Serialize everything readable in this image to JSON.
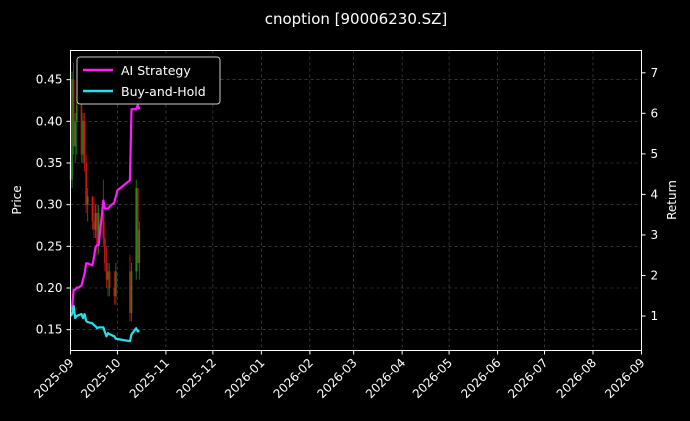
{
  "chart_data": {
    "type": "line",
    "title": "cnoption [90006230.SZ]",
    "ylabel": "Price",
    "y2label": "Return",
    "xlim": [
      "2025-09-01",
      "2026-09-01"
    ],
    "ylim": [
      0.125,
      0.485
    ],
    "y2lim": [
      0.15,
      7.55
    ],
    "grid": true,
    "legend_placement": "upper-left",
    "x_ticks": [
      "2025-09",
      "2025-10",
      "2025-11",
      "2025-12",
      "2026-01",
      "2026-02",
      "2026-03",
      "2026-04",
      "2026-05",
      "2026-06",
      "2026-07",
      "2026-08",
      "2026-09"
    ],
    "y_ticks": [
      "0.15",
      "0.20",
      "0.25",
      "0.30",
      "0.35",
      "0.40",
      "0.45"
    ],
    "y2_ticks": [
      "1",
      "2",
      "3",
      "4",
      "5",
      "6",
      "7"
    ],
    "colors": {
      "up": "#1e8a1e",
      "down": "#d11515",
      "strategy": "#ff1aff",
      "buyhold": "#22e1f0",
      "grid": "#555555",
      "axis": "#ffffff"
    },
    "series": [
      {
        "name": "AI Strategy",
        "axis": "right",
        "x": [
          "2025-09-01",
          "2025-09-02",
          "2025-09-03",
          "2025-09-04",
          "2025-09-05",
          "2025-09-06",
          "2025-09-08",
          "2025-09-10",
          "2025-09-11",
          "2025-09-12",
          "2025-09-15",
          "2025-09-16",
          "2025-09-17",
          "2025-09-18",
          "2025-09-19",
          "2025-09-22",
          "2025-09-23",
          "2025-09-25",
          "2025-09-26",
          "2025-09-29",
          "2025-09-30",
          "2025-10-01",
          "2025-10-09",
          "2025-10-10",
          "2025-10-13",
          "2025-10-14",
          "2025-10-15"
        ],
        "values": [
          1.15,
          1.2,
          1.65,
          1.65,
          1.7,
          1.7,
          1.75,
          2.05,
          2.3,
          2.3,
          2.25,
          2.45,
          2.7,
          2.75,
          2.75,
          3.85,
          3.65,
          3.65,
          3.7,
          3.8,
          3.95,
          4.1,
          4.35,
          6.1,
          6.1,
          6.2,
          6.1
        ]
      },
      {
        "name": "Buy-and-Hold",
        "axis": "right",
        "x": [
          "2025-09-01",
          "2025-09-02",
          "2025-09-03",
          "2025-09-04",
          "2025-09-05",
          "2025-09-08",
          "2025-09-09",
          "2025-09-10",
          "2025-09-11",
          "2025-09-12",
          "2025-09-15",
          "2025-09-16",
          "2025-09-17",
          "2025-09-18",
          "2025-09-19",
          "2025-09-22",
          "2025-09-23",
          "2025-09-24",
          "2025-09-25",
          "2025-09-26",
          "2025-09-29",
          "2025-09-30",
          "2025-10-09",
          "2025-10-10",
          "2025-10-13",
          "2025-10-14",
          "2025-10-15"
        ],
        "values": [
          1.0,
          1.05,
          1.25,
          0.95,
          1.0,
          1.05,
          0.95,
          1.05,
          0.88,
          0.85,
          0.82,
          0.78,
          0.75,
          0.7,
          0.72,
          0.72,
          0.6,
          0.5,
          0.58,
          0.55,
          0.5,
          0.44,
          0.38,
          0.55,
          0.7,
          0.62,
          0.65
        ]
      }
    ],
    "ohlc": [
      {
        "date": "2025-09-01",
        "o": 0.35,
        "h": 0.4,
        "l": 0.33,
        "c": 0.33
      },
      {
        "date": "2025-09-02",
        "o": 0.33,
        "h": 0.46,
        "l": 0.32,
        "c": 0.45
      },
      {
        "date": "2025-09-03",
        "o": 0.45,
        "h": 0.47,
        "l": 0.36,
        "c": 0.37
      },
      {
        "date": "2025-09-04",
        "o": 0.37,
        "h": 0.41,
        "l": 0.35,
        "c": 0.4
      },
      {
        "date": "2025-09-05",
        "o": 0.4,
        "h": 0.43,
        "l": 0.36,
        "c": 0.42
      },
      {
        "date": "2025-09-08",
        "o": 0.42,
        "h": 0.42,
        "l": 0.35,
        "c": 0.36
      },
      {
        "date": "2025-09-09",
        "o": 0.36,
        "h": 0.41,
        "l": 0.35,
        "c": 0.4
      },
      {
        "date": "2025-09-10",
        "o": 0.4,
        "h": 0.41,
        "l": 0.34,
        "c": 0.35
      },
      {
        "date": "2025-09-11",
        "o": 0.35,
        "h": 0.36,
        "l": 0.29,
        "c": 0.3
      },
      {
        "date": "2025-09-12",
        "o": 0.3,
        "h": 0.32,
        "l": 0.28,
        "c": 0.31
      },
      {
        "date": "2025-09-15",
        "o": 0.31,
        "h": 0.31,
        "l": 0.27,
        "c": 0.28
      },
      {
        "date": "2025-09-16",
        "o": 0.28,
        "h": 0.31,
        "l": 0.26,
        "c": 0.27
      },
      {
        "date": "2025-09-17",
        "o": 0.27,
        "h": 0.3,
        "l": 0.26,
        "c": 0.29
      },
      {
        "date": "2025-09-18",
        "o": 0.29,
        "h": 0.3,
        "l": 0.24,
        "c": 0.25
      },
      {
        "date": "2025-09-19",
        "o": 0.25,
        "h": 0.3,
        "l": 0.24,
        "c": 0.29
      },
      {
        "date": "2025-09-22",
        "o": 0.29,
        "h": 0.33,
        "l": 0.25,
        "c": 0.26
      },
      {
        "date": "2025-09-23",
        "o": 0.26,
        "h": 0.28,
        "l": 0.22,
        "c": 0.23
      },
      {
        "date": "2025-09-24",
        "o": 0.23,
        "h": 0.25,
        "l": 0.2,
        "c": 0.21
      },
      {
        "date": "2025-09-25",
        "o": 0.21,
        "h": 0.23,
        "l": 0.19,
        "c": 0.22
      },
      {
        "date": "2025-09-26",
        "o": 0.22,
        "h": 0.23,
        "l": 0.19,
        "c": 0.2
      },
      {
        "date": "2025-09-29",
        "o": 0.2,
        "h": 0.22,
        "l": 0.18,
        "c": 0.19
      },
      {
        "date": "2025-09-30",
        "o": 0.19,
        "h": 0.23,
        "l": 0.18,
        "c": 0.22
      },
      {
        "date": "2025-10-09",
        "o": 0.22,
        "h": 0.24,
        "l": 0.16,
        "c": 0.17
      },
      {
        "date": "2025-10-10",
        "o": 0.17,
        "h": 0.23,
        "l": 0.16,
        "c": 0.22
      },
      {
        "date": "2025-10-13",
        "o": 0.22,
        "h": 0.33,
        "l": 0.21,
        "c": 0.32
      },
      {
        "date": "2025-10-14",
        "o": 0.32,
        "h": 0.32,
        "l": 0.22,
        "c": 0.23
      },
      {
        "date": "2025-10-15",
        "o": 0.23,
        "h": 0.28,
        "l": 0.21,
        "c": 0.27
      }
    ]
  }
}
